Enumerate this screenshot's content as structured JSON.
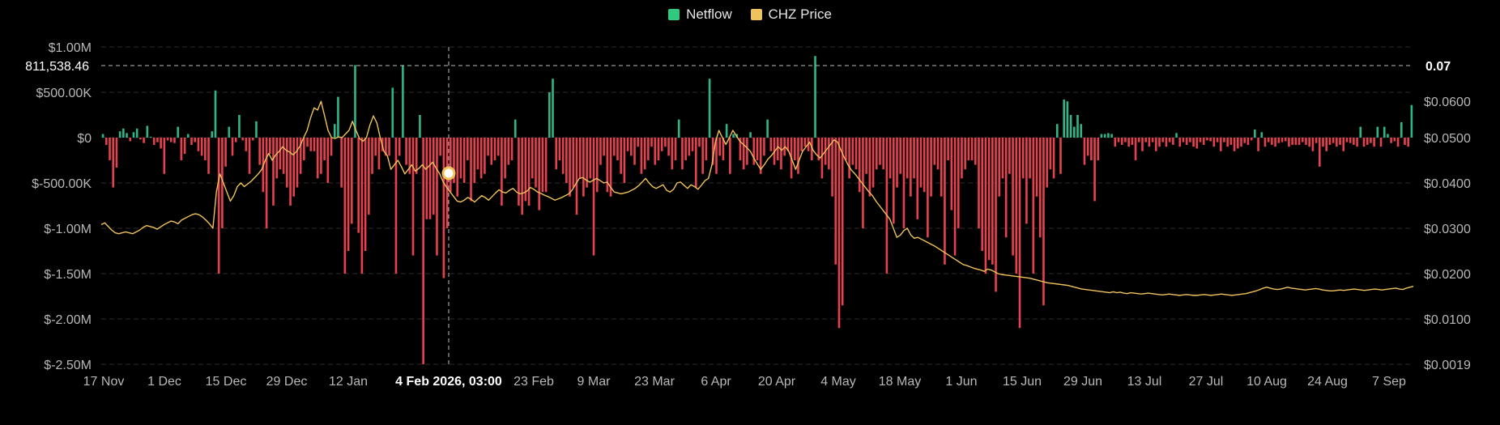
{
  "legend": {
    "netflow_label": "Netflow",
    "price_label": "CHZ Price"
  },
  "colors": {
    "netflow_positive": "#2fb58a",
    "netflow_negative": "#e5414e",
    "price_line": "#f0c25c",
    "grid": "#2c2c2c",
    "crosshair": "#bbbbbb"
  },
  "crosshair": {
    "date_label": "4 Feb 2026, 03:00",
    "left_value_label": "811,538.46",
    "right_value_label": "0.07"
  },
  "chart_data": {
    "type": "bar",
    "x_tick_labels": [
      "17 Nov",
      "1 Dec",
      "15 Dec",
      "29 Dec",
      "12 Jan",
      "4 Feb 2026, 03:00",
      "23 Feb",
      "9 Mar",
      "23 Mar",
      "6 Apr",
      "20 Apr",
      "4 May",
      "18 May",
      "1 Jun",
      "15 Jun",
      "29 Jun",
      "13 Jul",
      "27 Jul",
      "10 Aug",
      "24 Aug",
      "7 Sep"
    ],
    "y_left_tick_labels": [
      "$1.00M",
      "$500.00K",
      "$0",
      "$-500.00K",
      "$-1.00M",
      "$-1.50M",
      "$-2.00M",
      "$-2.50M"
    ],
    "y_left_tick_values": [
      1000000,
      500000,
      0,
      -500000,
      -1000000,
      -1500000,
      -2000000,
      -2500000
    ],
    "y_right_tick_labels": [
      "$0.0600",
      "$0.0500",
      "$0.0400",
      "$0.0300",
      "$0.0200",
      "$0.0100",
      "$0.0019"
    ],
    "ylim_left": [
      -2500000,
      1000000
    ],
    "price_scale_anchors": [
      [
        0.07,
        811538.46
      ],
      [
        0.06,
        400000
      ],
      [
        0.05,
        0
      ],
      [
        0.04,
        -500000
      ],
      [
        0.03,
        -1000000
      ],
      [
        0.02,
        -1500000
      ],
      [
        0.01,
        -2000000
      ],
      [
        0.0019,
        -2500000
      ]
    ],
    "series": [
      {
        "name": "Netflow",
        "type": "bar",
        "values": [
          40000,
          -80000,
          -250000,
          -550000,
          -330000,
          70000,
          100000,
          50000,
          -40000,
          60000,
          100000,
          -20000,
          -60000,
          130000,
          10000,
          -80000,
          -50000,
          -120000,
          -400000,
          -30000,
          -50000,
          -60000,
          120000,
          -250000,
          -180000,
          40000,
          -80000,
          -50000,
          -150000,
          -200000,
          -250000,
          -400000,
          70000,
          520000,
          -1500000,
          -1000000,
          -320000,
          120000,
          -200000,
          -50000,
          250000,
          -30000,
          -150000,
          -400000,
          -30000,
          180000,
          -300000,
          -600000,
          -1000000,
          -180000,
          -750000,
          -450000,
          -350000,
          -400000,
          -550000,
          -750000,
          -650000,
          -550000,
          -400000,
          -250000,
          -100000,
          -150000,
          -150000,
          -450000,
          -400000,
          -250000,
          -500000,
          -200000,
          150000,
          450000,
          -550000,
          -1500000,
          -1250000,
          -950000,
          800000,
          -1050000,
          -1500000,
          -1250000,
          -850000,
          -400000,
          -200000,
          -350000,
          -150000,
          -200000,
          -200000,
          550000,
          -1500000,
          -200000,
          800000,
          -300000,
          -400000,
          -1300000,
          -400000,
          250000,
          -2500000,
          -900000,
          -900000,
          -850000,
          -1300000,
          -200000,
          -1550000,
          -1000000,
          -600000,
          -500000,
          -650000,
          -450000,
          -500000,
          -250000,
          -700000,
          -500000,
          -350000,
          -450000,
          -400000,
          -200000,
          -300000,
          -250000,
          -200000,
          -750000,
          -450000,
          -300000,
          -250000,
          200000,
          -750000,
          -850000,
          -700000,
          -750000,
          -450000,
          -550000,
          -800000,
          -600000,
          -600000,
          500000,
          650000,
          -350000,
          -250000,
          -400000,
          -500000,
          -650000,
          -550000,
          -850000,
          -450000,
          -650000,
          -550000,
          -450000,
          -1300000,
          -600000,
          -300000,
          -200000,
          -600000,
          -650000,
          -200000,
          -250000,
          -400000,
          -500000,
          -150000,
          -200000,
          -300000,
          -100000,
          -400000,
          -350000,
          -250000,
          -100000,
          -300000,
          -250000,
          -150000,
          -100000,
          -200000,
          -350000,
          -250000,
          200000,
          -350000,
          -250000,
          -200000,
          -150000,
          -550000,
          -100000,
          -400000,
          -250000,
          650000,
          -300000,
          -400000,
          -200000,
          -250000,
          150000,
          -400000,
          40000,
          40000,
          -250000,
          -350000,
          -300000,
          60000,
          -300000,
          -250000,
          -400000,
          -200000,
          200000,
          -150000,
          -300000,
          -250000,
          -350000,
          -200000,
          -150000,
          -450000,
          -250000,
          -400000,
          -150000,
          -100000,
          -150000,
          -250000,
          900000,
          -250000,
          -450000,
          -300000,
          -350000,
          -650000,
          -1400000,
          -2100000,
          -1850000,
          -250000,
          -450000,
          -300000,
          -350000,
          -600000,
          -1000000,
          -400000,
          -650000,
          -550000,
          -350000,
          -300000,
          -350000,
          -1500000,
          -450000,
          -950000,
          -550000,
          -400000,
          -1000000,
          -450000,
          -650000,
          -450000,
          -900000,
          -550000,
          -600000,
          -1100000,
          -650000,
          -300000,
          -350000,
          -650000,
          -1400000,
          -250000,
          -800000,
          -1300000,
          -1000000,
          -450000,
          -350000,
          -250000,
          -250000,
          -300000,
          -1000000,
          -1250000,
          -1500000,
          -1350000,
          -1400000,
          -1700000,
          -650000,
          -450000,
          -1100000,
          -400000,
          -1300000,
          -1500000,
          -2100000,
          -450000,
          -950000,
          -450000,
          -1500000,
          -650000,
          -1100000,
          -1850000,
          -550000,
          -350000,
          -450000,
          150000,
          -400000,
          420000,
          400000,
          250000,
          120000,
          250000,
          150000,
          -300000,
          -200000,
          -250000,
          -700000,
          -250000,
          40000,
          40000,
          50000,
          40000,
          -100000,
          -50000,
          -80000,
          -50000,
          -100000,
          -80000,
          -250000,
          -50000,
          -150000,
          -50000,
          -100000,
          -50000,
          -150000,
          -100000,
          -50000,
          -100000,
          -50000,
          -80000,
          50000,
          -100000,
          -50000,
          -80000,
          -50000,
          -100000,
          -120000,
          -50000,
          -80000,
          -30000,
          -40000,
          -100000,
          -50000,
          -150000,
          -50000,
          -100000,
          -80000,
          -150000,
          -120000,
          -100000,
          -60000,
          -80000,
          -30000,
          90000,
          -150000,
          60000,
          -100000,
          -50000,
          -80000,
          -100000,
          -60000,
          -50000,
          -40000,
          -100000,
          -80000,
          -80000,
          -80000,
          -50000,
          -80000,
          -100000,
          -150000,
          -60000,
          -320000,
          -100000,
          -150000,
          -80000,
          -60000,
          -100000,
          -80000,
          -150000,
          -50000,
          -60000,
          -80000,
          -100000,
          120000,
          -100000,
          -80000,
          -60000,
          -100000,
          120000,
          -100000,
          120000,
          40000,
          -60000,
          -40000,
          -100000,
          170000,
          -80000,
          -100000,
          360000
        ]
      },
      {
        "name": "CHZ Price",
        "type": "line",
        "values": [
          0.0308,
          0.0312,
          0.0304,
          0.0296,
          0.029,
          0.0288,
          0.029,
          0.0292,
          0.029,
          0.0288,
          0.0292,
          0.0296,
          0.0302,
          0.0306,
          0.0304,
          0.0302,
          0.0298,
          0.0303,
          0.0308,
          0.0312,
          0.0316,
          0.0314,
          0.031,
          0.0318,
          0.0322,
          0.0326,
          0.033,
          0.0332,
          0.033,
          0.0325,
          0.0318,
          0.031,
          0.03,
          0.038,
          0.042,
          0.04,
          0.038,
          0.036,
          0.0372,
          0.0392,
          0.04,
          0.0392,
          0.0398,
          0.0404,
          0.0412,
          0.042,
          0.043,
          0.045,
          0.0465,
          0.045,
          0.0462,
          0.047,
          0.048,
          0.0472,
          0.0468,
          0.0462,
          0.047,
          0.0482,
          0.05,
          0.052,
          0.0555,
          0.0582,
          0.0576,
          0.06,
          0.056,
          0.052,
          0.05,
          0.0498,
          0.0502,
          0.05,
          0.051,
          0.052,
          0.0545,
          0.052,
          0.0498,
          0.0492,
          0.05,
          0.0535,
          0.056,
          0.054,
          0.0498,
          0.047,
          0.046,
          0.043,
          0.044,
          0.045,
          0.0436,
          0.042,
          0.043,
          0.044,
          0.0426,
          0.0432,
          0.044,
          0.043,
          0.0438,
          0.0446,
          0.0432,
          0.042,
          0.0402,
          0.039,
          0.038,
          0.037,
          0.036,
          0.0358,
          0.0362,
          0.0368,
          0.0364,
          0.0358,
          0.0365,
          0.0372,
          0.0368,
          0.0362,
          0.037,
          0.0378,
          0.0385,
          0.038,
          0.0378,
          0.0384,
          0.0388,
          0.038,
          0.0376,
          0.0378,
          0.0382,
          0.039,
          0.0386,
          0.038,
          0.0377,
          0.0373,
          0.037,
          0.0366,
          0.0362,
          0.0365,
          0.0368,
          0.0372,
          0.0376,
          0.0385,
          0.0398,
          0.041,
          0.0412,
          0.0406,
          0.0402,
          0.0406,
          0.041,
          0.0405,
          0.04,
          0.0402,
          0.039,
          0.038,
          0.0378,
          0.0376,
          0.0378,
          0.038,
          0.0384,
          0.0388,
          0.0394,
          0.0402,
          0.041,
          0.04,
          0.0392,
          0.0388,
          0.0392,
          0.0396,
          0.0384,
          0.038,
          0.0386,
          0.04,
          0.0402,
          0.0395,
          0.0388,
          0.0396,
          0.0392,
          0.0386,
          0.0395,
          0.0405,
          0.041,
          0.044,
          0.049,
          0.052,
          0.05,
          0.0485,
          0.05,
          0.052,
          0.0505,
          0.0492,
          0.0485,
          0.0478,
          0.047,
          0.0455,
          0.0442,
          0.043,
          0.044,
          0.0452,
          0.046,
          0.047,
          0.048,
          0.0472,
          0.048,
          0.047,
          0.045,
          0.043,
          0.045,
          0.047,
          0.048,
          0.049,
          0.0472,
          0.0462,
          0.0455,
          0.0465,
          0.0475,
          0.0485,
          0.0495,
          0.049,
          0.0472,
          0.0455,
          0.044,
          0.0428,
          0.042,
          0.041,
          0.04,
          0.039,
          0.038,
          0.0372,
          0.036,
          0.035,
          0.034,
          0.033,
          0.032,
          0.03,
          0.028,
          0.0285,
          0.0295,
          0.03,
          0.0285,
          0.0278,
          0.028,
          0.0276,
          0.0272,
          0.0268,
          0.0264,
          0.026,
          0.0255,
          0.025,
          0.0245,
          0.024,
          0.0235,
          0.023,
          0.0225,
          0.022,
          0.0218,
          0.0215,
          0.0212,
          0.021,
          0.0208,
          0.0205,
          0.021,
          0.0208,
          0.0204,
          0.02,
          0.0198,
          0.0197,
          0.0196,
          0.0195,
          0.0194,
          0.0193,
          0.0192,
          0.0191,
          0.019,
          0.0188,
          0.0186,
          0.0184,
          0.0182,
          0.018,
          0.0179,
          0.0178,
          0.0177,
          0.0176,
          0.0175,
          0.0174,
          0.0172,
          0.017,
          0.0168,
          0.0166,
          0.0165,
          0.0164,
          0.0163,
          0.0162,
          0.0161,
          0.016,
          0.0159,
          0.0158,
          0.016,
          0.0158,
          0.0159,
          0.0157,
          0.0156,
          0.0158,
          0.0157,
          0.0156,
          0.0155,
          0.0156,
          0.0157,
          0.0156,
          0.0155,
          0.0154,
          0.0153,
          0.0154,
          0.0155,
          0.0154,
          0.0153,
          0.0152,
          0.0153,
          0.0154,
          0.0153,
          0.0152,
          0.0152,
          0.0153,
          0.0154,
          0.0153,
          0.0152,
          0.0153,
          0.0154,
          0.0155,
          0.0154,
          0.0153,
          0.0152,
          0.0153,
          0.0154,
          0.0155,
          0.0156,
          0.0158,
          0.016,
          0.0162,
          0.0165,
          0.0168,
          0.017,
          0.0168,
          0.0166,
          0.0165,
          0.0166,
          0.0168,
          0.017,
          0.0168,
          0.0167,
          0.0166,
          0.0165,
          0.0164,
          0.0165,
          0.0166,
          0.0167,
          0.0166,
          0.0164,
          0.0163,
          0.0162,
          0.0162,
          0.0163,
          0.0164,
          0.0163,
          0.0164,
          0.0165,
          0.0166,
          0.0165,
          0.0164,
          0.0163,
          0.0164,
          0.0165,
          0.0166,
          0.0165,
          0.0164,
          0.0165,
          0.0166,
          0.0167,
          0.0168,
          0.0166,
          0.0165,
          0.0168,
          0.017,
          0.0172
        ]
      }
    ],
    "grid": true,
    "legend_position": "top-center"
  }
}
